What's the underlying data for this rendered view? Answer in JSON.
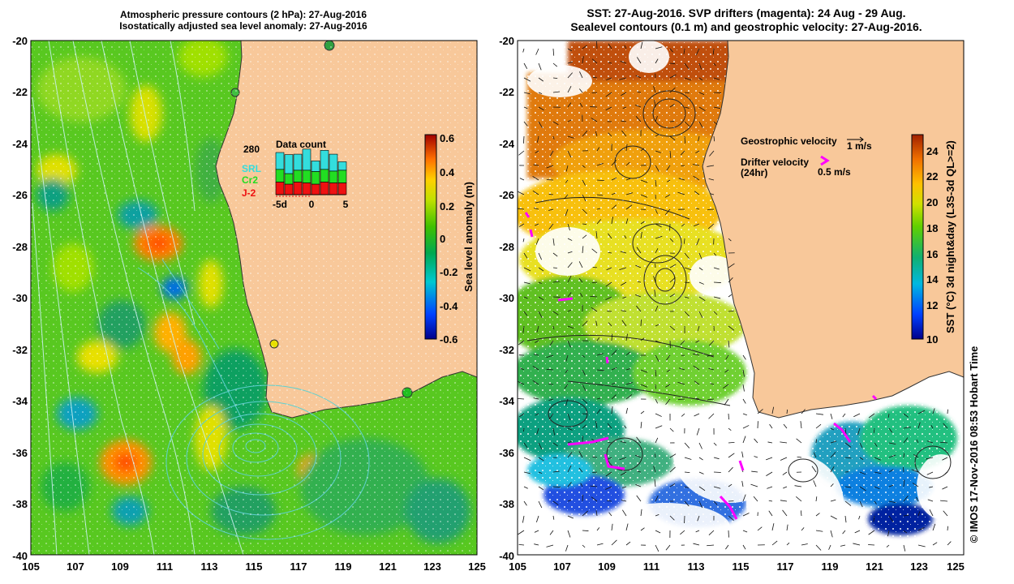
{
  "left_panel": {
    "title_line1": "Atmospheric pressure contours (2 hPa): 27-Aug-2016",
    "title_line2": "Isostatically adjusted sea level anomaly: 27-Aug-2016",
    "colorbar_label": "Sea level anomaly (m)",
    "colorbar_ticks": [
      "0.6",
      "0.4",
      "0.2",
      "0",
      "-0.2",
      "-0.4",
      "-0.6"
    ],
    "data_count": {
      "title": "Data count",
      "max_label": "280",
      "x_ticks": [
        "-5d",
        "0",
        "5"
      ],
      "missions": [
        "SRL",
        "Cr2",
        "J-2"
      ],
      "mission_colors": [
        "#33dddd",
        "#22dd22",
        "#ee1111"
      ],
      "bars": [
        {
          "j2": 0.3,
          "cr2": 0.3,
          "srl": 0.4
        },
        {
          "j2": 0.25,
          "cr2": 0.25,
          "srl": 0.45
        },
        {
          "j2": 0.3,
          "cr2": 0.28,
          "srl": 0.38
        },
        {
          "j2": 0.28,
          "cr2": 0.3,
          "srl": 0.5
        },
        {
          "j2": 0.25,
          "cr2": 0.3,
          "srl": 0.25
        },
        {
          "j2": 0.3,
          "cr2": 0.3,
          "srl": 0.45
        },
        {
          "j2": 0.28,
          "cr2": 0.28,
          "srl": 0.4
        },
        {
          "j2": 0.28,
          "cr2": 0.3,
          "srl": 0.2
        }
      ]
    }
  },
  "right_panel": {
    "title_line1": "SST: 27-Aug-2016. SVP drifters (magenta): 24 Aug - 29 Aug.",
    "title_line2": "Sealevel contours (0.1 m) and geostrophic velocity: 27-Aug-2016.",
    "colorbar_label": "SST (°C) 3d night&day (L3S-3d QL>=2)",
    "colorbar_ticks": [
      "24",
      "22",
      "20",
      "18",
      "16",
      "14",
      "12",
      "10"
    ],
    "legend": {
      "geostrophic_label": "Geostrophic velocity",
      "geostrophic_scale": "1 m/s",
      "drifter_label": "Drifter velocity",
      "drifter_period": "(24hr)",
      "drifter_scale": "0.5 m/s"
    },
    "credit": "© IMOS 17-Nov-2016 08:53 Hobart Time"
  },
  "axes": {
    "lat_ticks": [
      "-20",
      "-22",
      "-24",
      "-26",
      "-28",
      "-30",
      "-32",
      "-34",
      "-36",
      "-38",
      "-40"
    ],
    "lon_ticks": [
      "105",
      "107",
      "109",
      "111",
      "113",
      "115",
      "117",
      "119",
      "121",
      "123",
      "125"
    ]
  },
  "colors": {
    "land": "#f8c89a",
    "sla_scale": [
      "#00008b",
      "#0060ff",
      "#00c8c8",
      "#00b050",
      "#40c000",
      "#a0e000",
      "#ffe000",
      "#ffa000",
      "#ff5000",
      "#b00000"
    ],
    "sst_scale": [
      "#00008b",
      "#0050ff",
      "#00c0e0",
      "#20c060",
      "#60d000",
      "#c0e000",
      "#ffc000",
      "#ff8000",
      "#e05000",
      "#b02000"
    ],
    "drifter": "#ff00ff"
  }
}
